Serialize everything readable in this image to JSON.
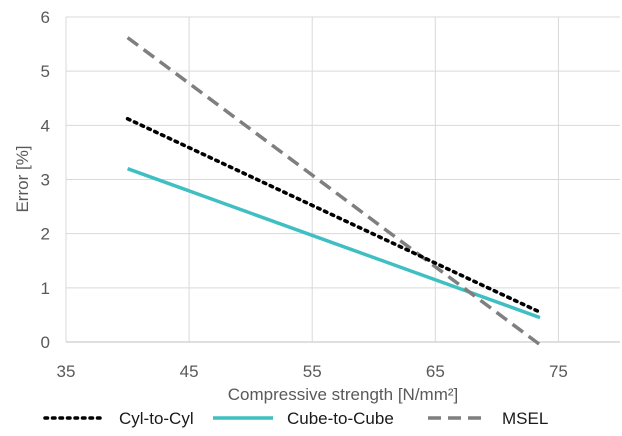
{
  "chart_data": {
    "type": "line",
    "title": "",
    "xlabel": "Compressive strength [N/mm²]",
    "ylabel": "Error [%]",
    "xlim": [
      35,
      80
    ],
    "ylim": [
      0,
      6
    ],
    "x_ticks": [
      "35",
      "45",
      "55",
      "65",
      "75"
    ],
    "y_ticks": [
      "0",
      "1",
      "2",
      "3",
      "4",
      "5",
      "6"
    ],
    "grid": true,
    "legend_position": "bottom",
    "series": [
      {
        "name": "Cyl-to-Cyl",
        "color": "#000000",
        "style": "dotted",
        "x": [
          40,
          73.5
        ],
        "y": [
          4.12,
          0.55
        ]
      },
      {
        "name": "Cube-to-Cube",
        "color": "#3fbfc2",
        "style": "solid",
        "x": [
          40,
          73.5
        ],
        "y": [
          3.2,
          0.45
        ]
      },
      {
        "name": "MSEL",
        "color": "#7f7f7f",
        "style": "dashed",
        "x": [
          40,
          73.5
        ],
        "y": [
          5.62,
          -0.05
        ]
      }
    ]
  }
}
